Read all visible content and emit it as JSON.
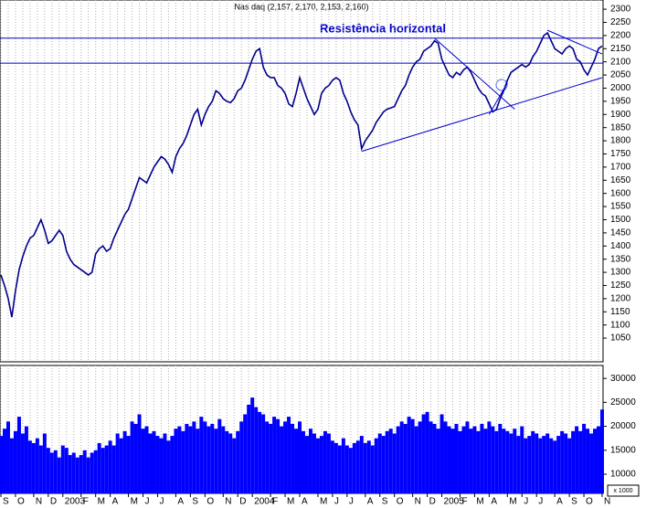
{
  "chart_data": {
    "type": "line",
    "title": "Nas daq (2,157, 2,170, 2,153, 2,160)",
    "annotation": "Resistência horizontal",
    "volume_unit": "x 1000",
    "categories": [
      "S",
      null,
      null,
      null,
      "O",
      null,
      null,
      null,
      null,
      "N",
      null,
      null,
      null,
      "D",
      null,
      null,
      null,
      "2003",
      null,
      null,
      null,
      null,
      "F",
      null,
      null,
      null,
      "M",
      null,
      null,
      null,
      "A",
      null,
      null,
      null,
      null,
      "M",
      null,
      null,
      null,
      "J",
      null,
      null,
      null,
      "J",
      null,
      null,
      null,
      null,
      "A",
      null,
      null,
      null,
      "S",
      null,
      null,
      null,
      "O",
      null,
      null,
      null,
      null,
      "N",
      null,
      null,
      null,
      "D",
      null,
      null,
      null,
      "2004",
      null,
      null,
      null,
      null,
      "F",
      null,
      null,
      null,
      "M",
      null,
      null,
      null,
      "A",
      null,
      null,
      null,
      null,
      "M",
      null,
      null,
      null,
      "J",
      null,
      null,
      null,
      "J",
      null,
      null,
      null,
      null,
      "A",
      null,
      null,
      null,
      "S",
      null,
      null,
      null,
      "O",
      null,
      null,
      null,
      null,
      "N",
      null,
      null,
      null,
      "D",
      null,
      null,
      null,
      "2005",
      null,
      null,
      null,
      null,
      "F",
      null,
      null,
      null,
      "M",
      null,
      null,
      null,
      "A",
      null,
      null,
      null,
      null,
      "M",
      null,
      null,
      null,
      "J",
      null,
      null,
      null,
      "J",
      null,
      null,
      null,
      null,
      "A",
      null,
      null,
      null,
      "S",
      null,
      null,
      null,
      "O",
      null,
      null,
      null,
      null,
      "N"
    ],
    "series": [
      {
        "color": "#00008b",
        "values": [
          1290,
          1250,
          1200,
          1130,
          1230,
          1310,
          1360,
          1400,
          1430,
          1440,
          1470,
          1500,
          1460,
          1410,
          1420,
          1440,
          1460,
          1440,
          1380,
          1350,
          1330,
          1320,
          1310,
          1300,
          1290,
          1300,
          1370,
          1390,
          1400,
          1380,
          1390,
          1430,
          1460,
          1490,
          1520,
          1540,
          1580,
          1620,
          1660,
          1650,
          1640,
          1670,
          1700,
          1720,
          1740,
          1730,
          1710,
          1680,
          1740,
          1770,
          1790,
          1820,
          1860,
          1900,
          1920,
          1860,
          1900,
          1930,
          1950,
          1990,
          1980,
          1960,
          1950,
          1945,
          1960,
          1990,
          2000,
          2030,
          2070,
          2110,
          2140,
          2150,
          2080,
          2050,
          2040,
          2040,
          2010,
          2000,
          1980,
          1940,
          1930,
          1980,
          2040,
          2000,
          1960,
          1930,
          1900,
          1920,
          1980,
          2000,
          2010,
          2030,
          2040,
          2030,
          1980,
          1950,
          1910,
          1880,
          1860,
          1770,
          1800,
          1820,
          1840,
          1870,
          1890,
          1910,
          1920,
          1925,
          1930,
          1960,
          1990,
          2010,
          2050,
          2080,
          2100,
          2110,
          2140,
          2150,
          2160,
          2180,
          2170,
          2110,
          2080,
          2050,
          2040,
          2060,
          2050,
          2070,
          2080,
          2060,
          2030,
          2000,
          1980,
          1970,
          1940,
          1910,
          1920,
          1960,
          1990,
          2030,
          2060,
          2070,
          2080,
          2090,
          2080,
          2090,
          2120,
          2140,
          2170,
          2200,
          2210,
          2180,
          2150,
          2140,
          2130,
          2150,
          2160,
          2150,
          2110,
          2100,
          2070,
          2050,
          2080,
          2110,
          2150,
          2160
        ]
      },
      {
        "type": "bar",
        "axis": "y2",
        "color": "#0000ff",
        "values": [
          18000,
          19500,
          21000,
          17500,
          19000,
          22000,
          18500,
          20000,
          17000,
          16500,
          17500,
          16000,
          18500,
          15500,
          14500,
          15000,
          13500,
          16000,
          15500,
          14000,
          14500,
          13500,
          14000,
          15000,
          13500,
          14500,
          15000,
          16500,
          15500,
          16000,
          17000,
          16000,
          18500,
          17500,
          19000,
          18000,
          21000,
          20500,
          22500,
          19500,
          20000,
          18500,
          19000,
          18000,
          17500,
          18500,
          17000,
          18000,
          19500,
          20000,
          19000,
          20500,
          20000,
          21000,
          19500,
          22000,
          21000,
          20000,
          20500,
          19500,
          21500,
          20000,
          19000,
          18500,
          17500,
          19000,
          21000,
          22500,
          24500,
          26000,
          24000,
          23000,
          22500,
          21000,
          20500,
          22000,
          21500,
          20000,
          21000,
          22000,
          20500,
          19500,
          21000,
          19000,
          18000,
          19500,
          18500,
          17500,
          18000,
          19000,
          18500,
          17000,
          16500,
          16000,
          17500,
          16000,
          15500,
          16500,
          17000,
          18000,
          16500,
          17000,
          16000,
          17500,
          18500,
          18000,
          19000,
          19500,
          18500,
          20000,
          21000,
          20500,
          22000,
          21500,
          20000,
          21000,
          22500,
          23000,
          21000,
          20500,
          19500,
          22500,
          21000,
          20000,
          19500,
          20500,
          19000,
          20000,
          21000,
          19500,
          20000,
          19000,
          20500,
          19500,
          21000,
          20000,
          19000,
          20500,
          19500,
          19000,
          18500,
          19500,
          18000,
          20000,
          17500,
          18000,
          19000,
          18500,
          17500,
          18000,
          18500,
          17500,
          17000,
          18000,
          19000,
          18500,
          17500,
          19000,
          20000,
          19000,
          20500,
          19500,
          18500,
          19500,
          20000,
          23500
        ]
      }
    ],
    "ylim": [
      960,
      2335
    ],
    "yticks": [
      1050,
      1100,
      1150,
      1200,
      1250,
      1300,
      1350,
      1400,
      1450,
      1500,
      1550,
      1600,
      1650,
      1700,
      1750,
      1800,
      1850,
      1900,
      1950,
      2000,
      2050,
      2100,
      2150,
      2200,
      2250,
      2300
    ],
    "y2lim": [
      6000,
      32700
    ],
    "y2ticks": [
      10000,
      15000,
      20000,
      25000,
      30000
    ],
    "hlines": [
      2190,
      2095
    ],
    "line_color": "#0000cc",
    "trendlines": [
      {
        "x": [
          99,
          165
        ],
        "y": [
          1760,
          2040
        ]
      },
      {
        "x": [
          119,
          141
        ],
        "y": [
          2190,
          1920
        ]
      },
      {
        "x": [
          134,
          139
        ],
        "y": [
          1900,
          2020
        ]
      },
      {
        "x": [
          150,
          165
        ],
        "y": [
          2220,
          2130
        ]
      }
    ],
    "grid": true
  }
}
